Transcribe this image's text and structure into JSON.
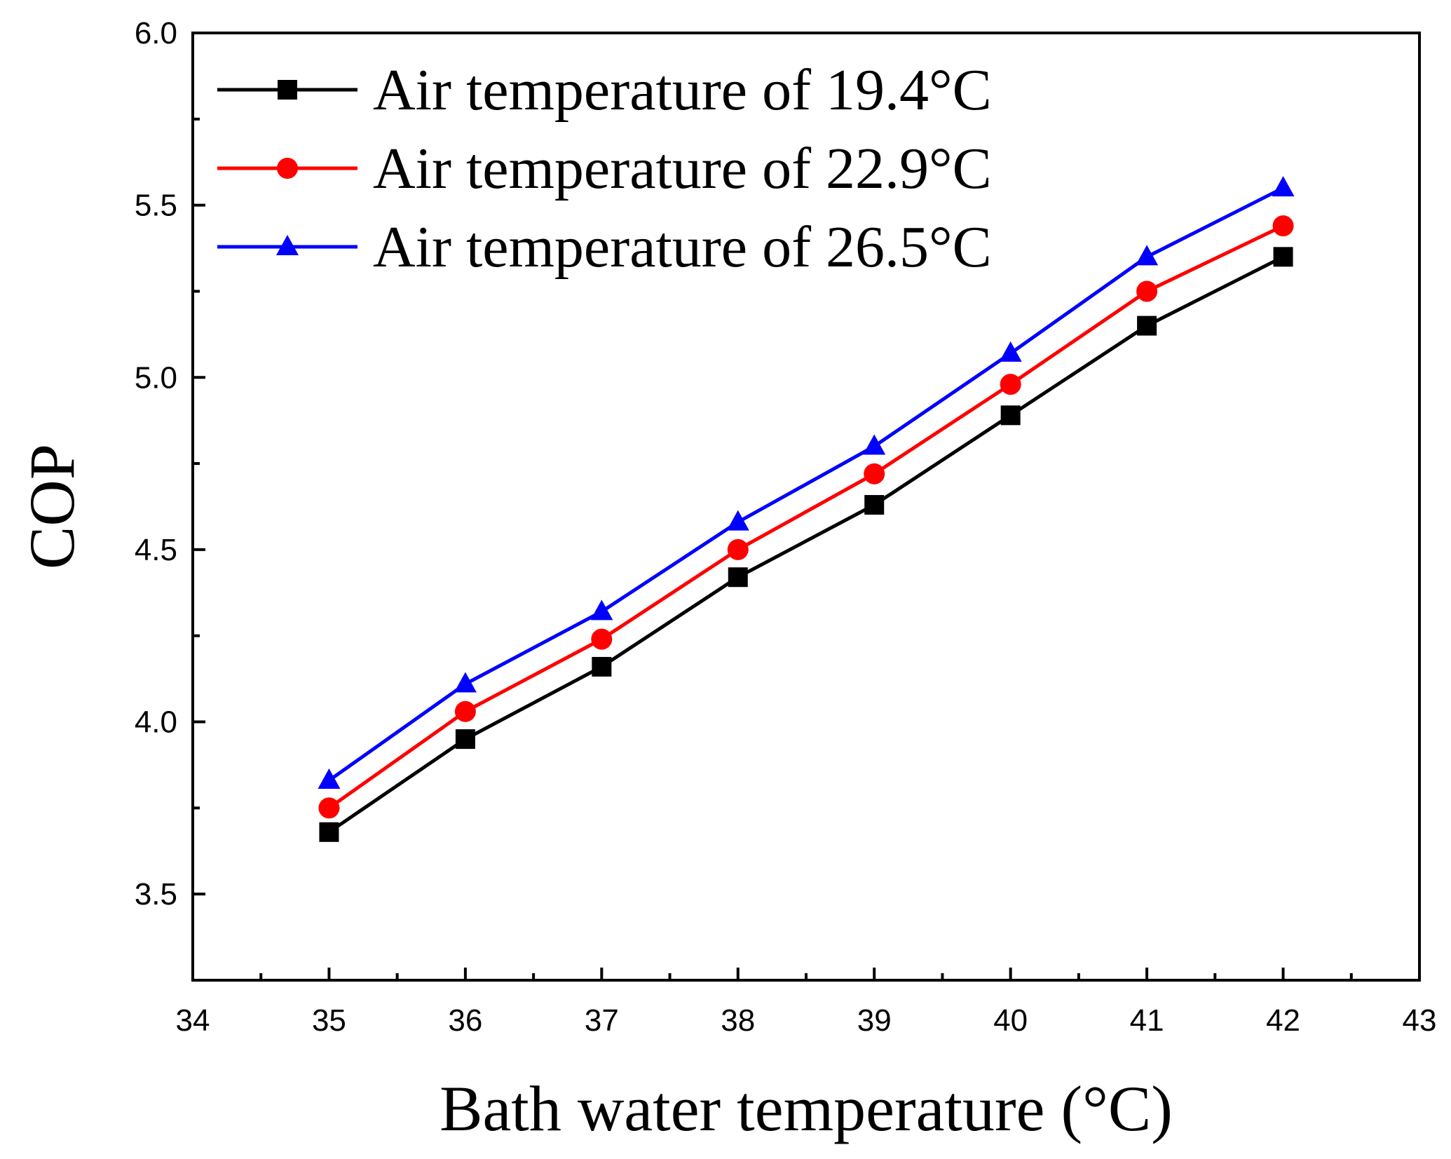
{
  "chart_data": {
    "type": "line",
    "title": "",
    "xlabel": "Bath water temperature (°C)",
    "ylabel": "COP",
    "xlim": [
      34,
      43
    ],
    "ylim": [
      3.25,
      6.0
    ],
    "xticks": [
      "34",
      "35",
      "36",
      "37",
      "38",
      "39",
      "40",
      "41",
      "42",
      "43"
    ],
    "yticks": [
      "3.5",
      "4.0",
      "4.5",
      "5.0",
      "5.5",
      "6.0"
    ],
    "legend_position": "top-left",
    "x": [
      35,
      36,
      37,
      38,
      39,
      40,
      41,
      42
    ],
    "series": [
      {
        "name": "Air temperature of 19.4°C",
        "color": "#000000",
        "marker": "square",
        "values": [
          3.68,
          3.95,
          4.16,
          4.42,
          4.63,
          4.89,
          5.15,
          5.35
        ]
      },
      {
        "name": "Air temperature of 22.9°C",
        "color": "#ff0000",
        "marker": "circle",
        "values": [
          3.75,
          4.03,
          4.24,
          4.5,
          4.72,
          4.98,
          5.25,
          5.44
        ]
      },
      {
        "name": "Air temperature of 26.5°C",
        "color": "#0000ff",
        "marker": "triangle",
        "values": [
          3.83,
          4.11,
          4.32,
          4.58,
          4.8,
          5.07,
          5.35,
          5.55
        ]
      }
    ]
  }
}
